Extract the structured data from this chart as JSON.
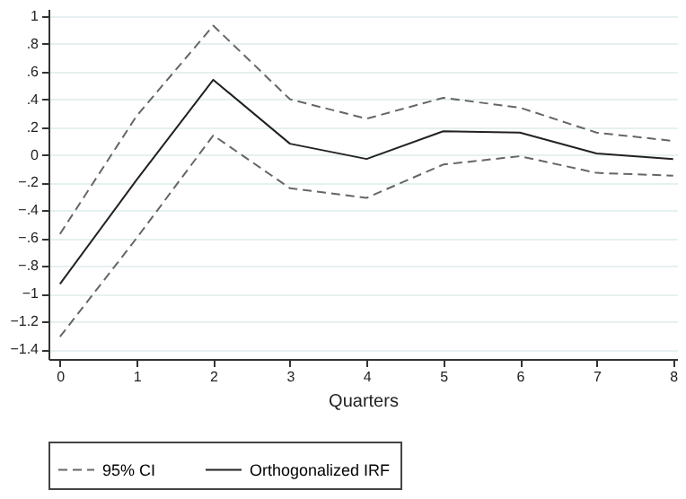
{
  "chart_data": {
    "type": "line",
    "xlabel": "Quarters",
    "x": [
      0,
      1,
      2,
      3,
      4,
      5,
      6,
      7,
      8
    ],
    "series": [
      {
        "name": "95% CI",
        "color": "#666666",
        "line_style": "dashed",
        "values": [
          -0.57,
          0.28,
          0.93,
          0.4,
          0.26,
          0.41,
          0.34,
          0.16,
          0.1
        ]
      },
      {
        "color": "#666666",
        "line_style": "dashed",
        "values": [
          -1.31,
          -0.6,
          0.14,
          -0.24,
          -0.31,
          -0.07,
          -0.01,
          -0.13,
          -0.15
        ]
      },
      {
        "name": "Orthogonalized IRF",
        "color": "#222222",
        "line_style": "solid",
        "values": [
          -0.93,
          -0.18,
          0.54,
          0.08,
          -0.03,
          0.17,
          0.16,
          0.01,
          -0.03
        ]
      }
    ],
    "xlim": [
      -0.15,
      8.05
    ],
    "xticks": [
      0,
      1,
      2,
      3,
      4,
      5,
      6,
      7,
      8
    ],
    "ylim": [
      -1.47,
      1.05
    ],
    "yticks": [
      1,
      {
        "value": 0.8,
        "label": ".8"
      },
      {
        "value": 0.6,
        "label": ".6"
      },
      {
        "value": 0.4,
        "label": ".4"
      },
      {
        "value": 0.2,
        "label": ".2"
      },
      0,
      {
        "value": -0.2,
        "label": "−.2"
      },
      {
        "value": -0.4,
        "label": "−.4"
      },
      {
        "value": -0.6,
        "label": "−.6"
      },
      {
        "value": -0.8,
        "label": "−.8"
      },
      {
        "value": -1,
        "label": "−1"
      },
      {
        "value": -1.2,
        "label": "−1.2"
      },
      {
        "value": -1.4,
        "label": "−1.4"
      }
    ],
    "grid": "y",
    "legend": "bottom",
    "marker": "none"
  }
}
